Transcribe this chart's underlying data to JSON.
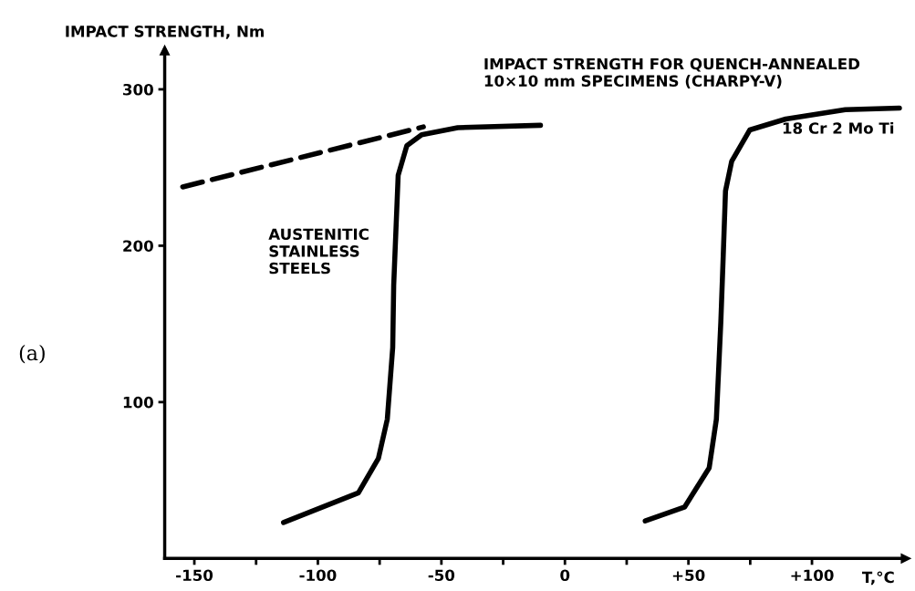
{
  "chart_data": {
    "type": "line",
    "title": "IMPACT STRENGTH FOR QUENCH-ANNEALED\n10×10 mm SPECIMENS (CHARPY-V)",
    "ylabel": "IMPACT STRENGTH, Nm",
    "xlabel": "T,°C",
    "annotations": [
      "(a)",
      "AUSTENITIC\nSTAINLESS\nSTEELS"
    ],
    "series": [
      {
        "color": "#000000",
        "line_style": "dashed",
        "x": [
          -154.7,
          -57.3
        ],
        "values": [
          237.6,
          276
        ]
      },
      {
        "color": "#000000",
        "line_style": "solid",
        "x": [
          -113.9,
          -83.6,
          -75.5,
          -71.9,
          -69.7,
          -69.3,
          -67.5,
          -64,
          -58,
          -43.4,
          -9.9
        ],
        "values": [
          23,
          42,
          64,
          89,
          135,
          175,
          245,
          264,
          271,
          275.5,
          277
        ]
      },
      {
        "name": "18 Cr 2 Mo Ti",
        "color": "#000000",
        "line_style": "solid",
        "x": [
          32.5,
          48.5,
          58.4,
          61.3,
          63.1,
          64,
          65,
          67.5,
          74.8,
          89.4,
          113.5,
          135.4
        ],
        "values": [
          24,
          33,
          58,
          89,
          151,
          190,
          235,
          254,
          274,
          281,
          287,
          288
        ]
      }
    ],
    "xlim": [
      -162,
      138
    ],
    "ylim": [
      0,
      325
    ],
    "xticks": [
      -150,
      {
        "value": -125,
        "label": null
      },
      -100,
      {
        "value": -75,
        "label": null
      },
      -50,
      {
        "value": -25,
        "label": null
      },
      0,
      {
        "value": 25,
        "label": null
      },
      {
        "value": 50,
        "label": "+50"
      },
      {
        "value": 75,
        "label": null
      },
      {
        "value": 100,
        "label": "+100"
      }
    ],
    "yticks": [
      100,
      200,
      300
    ],
    "grid": false,
    "legend": false,
    "marker": "none"
  }
}
